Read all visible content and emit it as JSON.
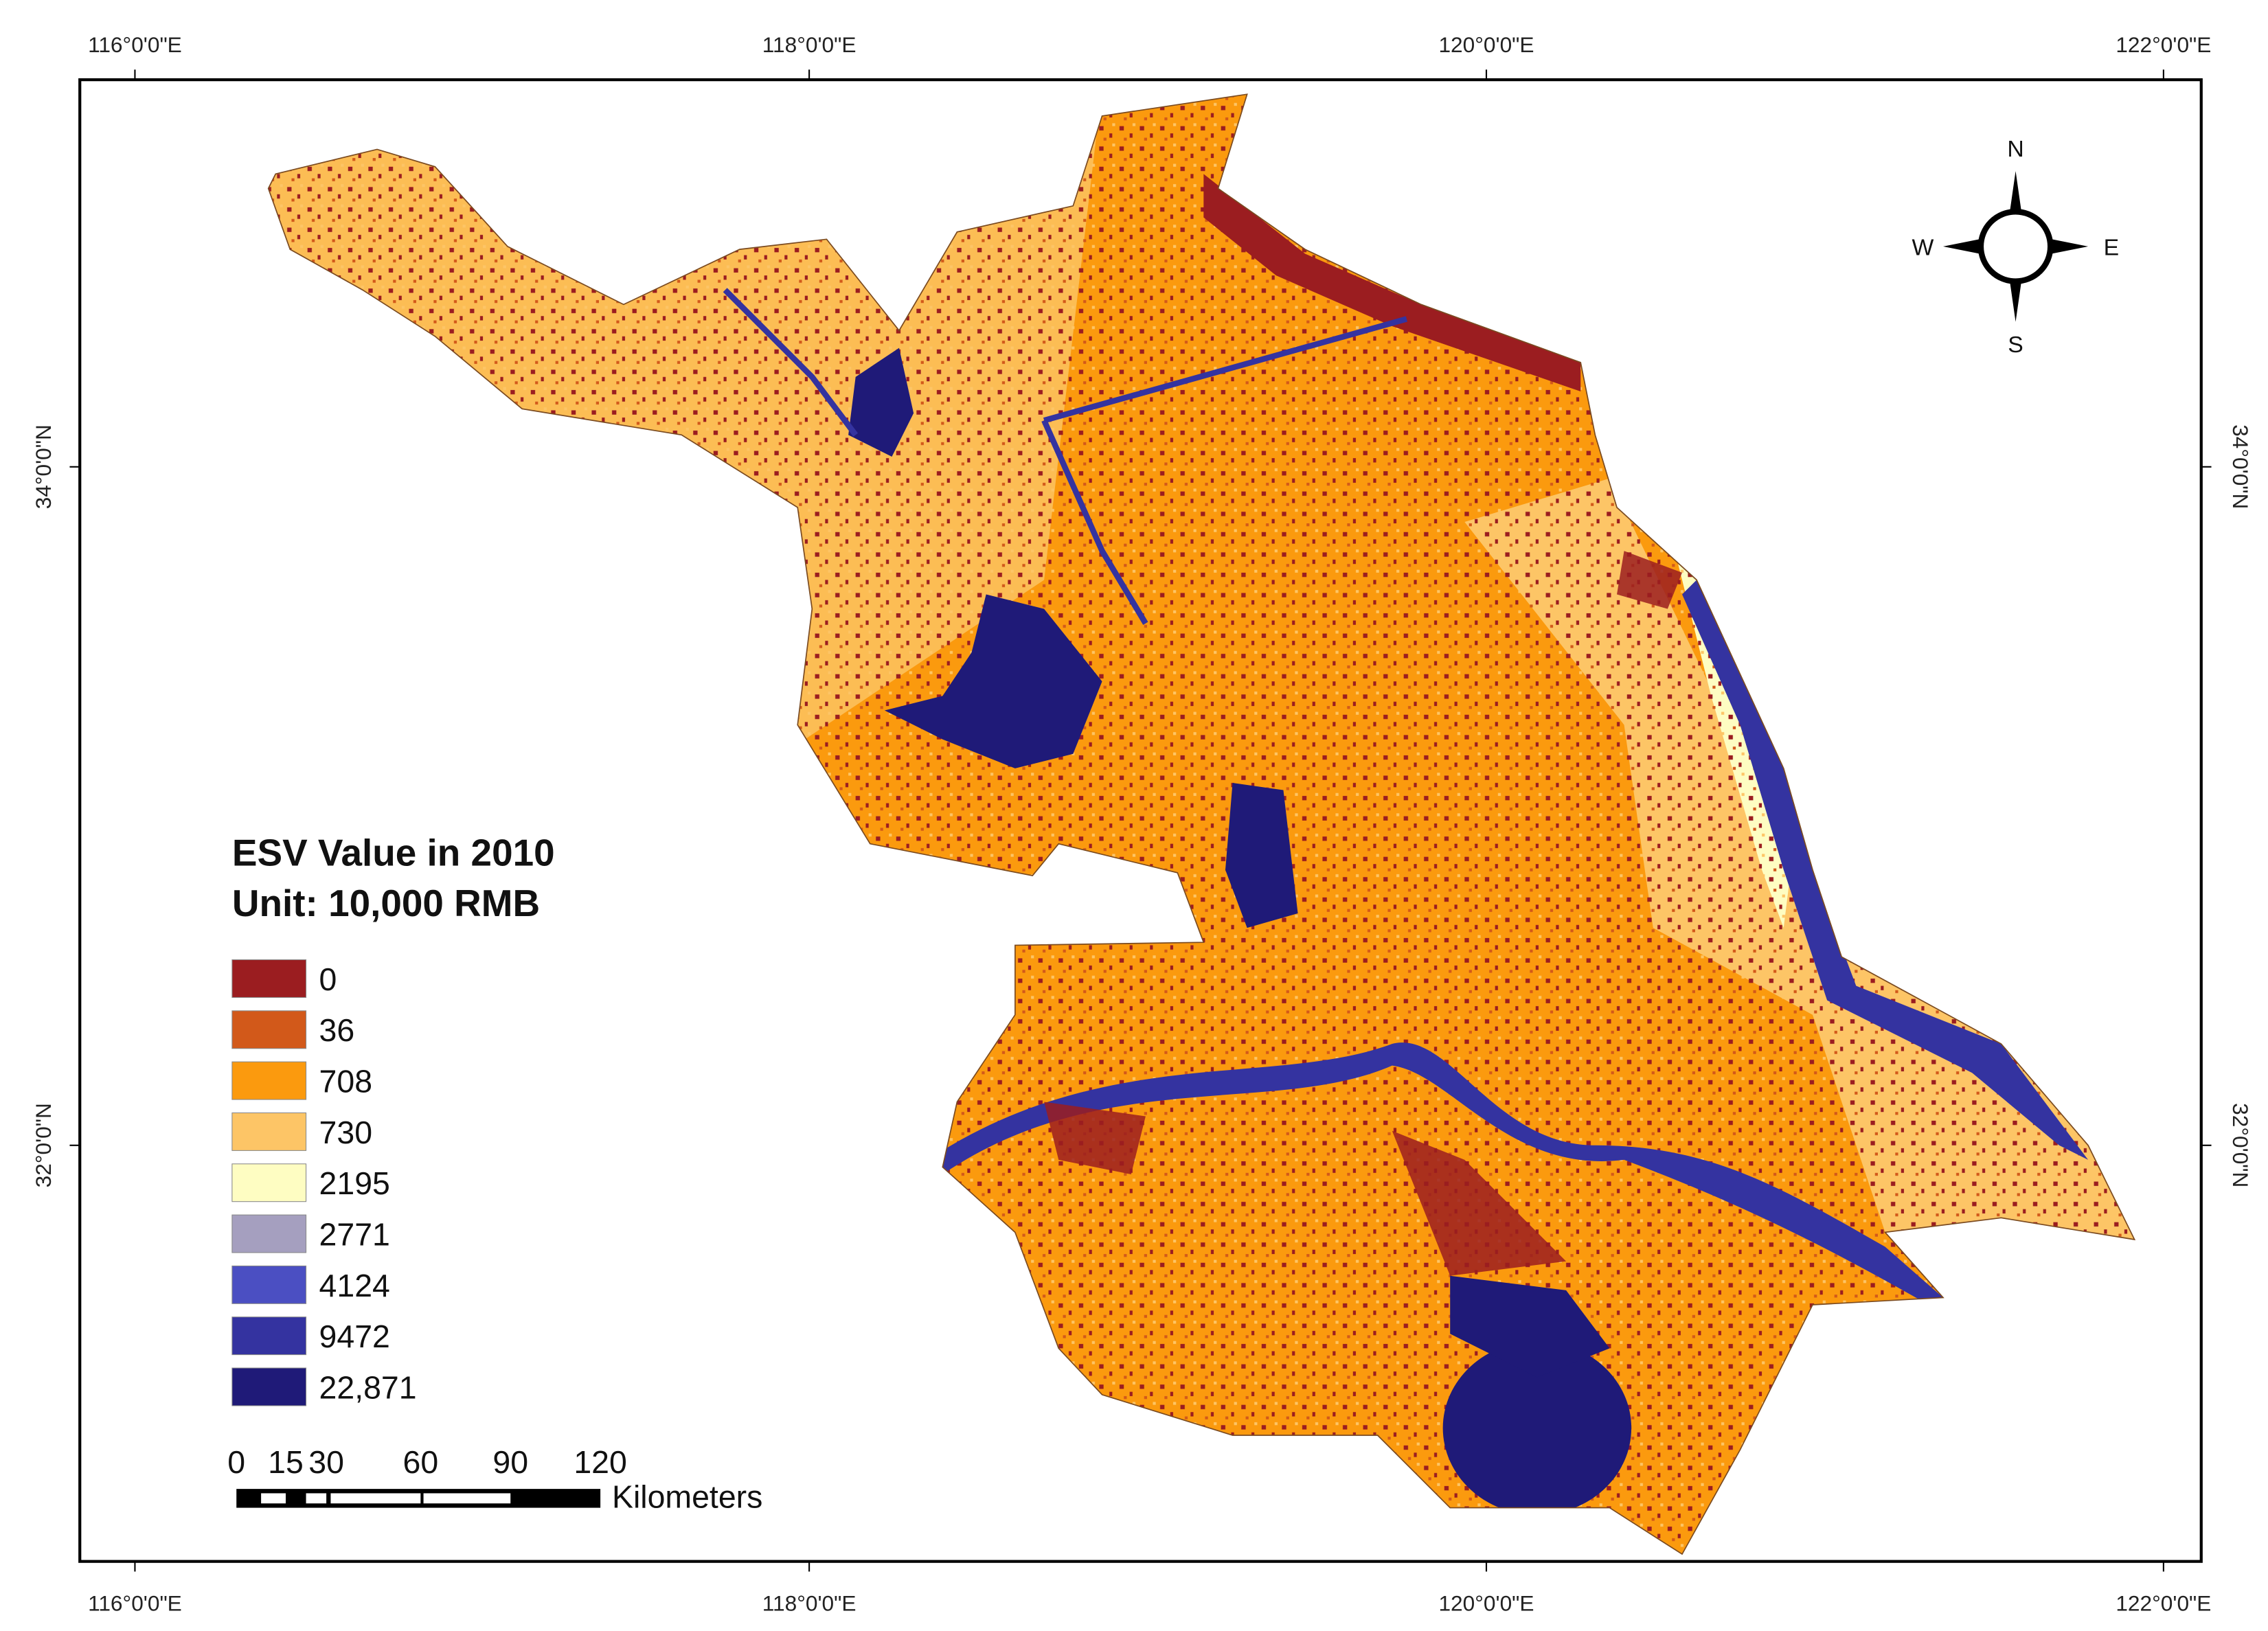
{
  "map": {
    "graticule": {
      "longitudes": [
        "116°0'0\"E",
        "118°0'0\"E",
        "120°0'0\"E",
        "122°0'0\"E"
      ],
      "latitudes": [
        "34°0'0\"N",
        "32°0'0\"N"
      ]
    },
    "legend": {
      "title": "ESV Value in 2010",
      "unit": "Unit: 10,000  RMB",
      "items": [
        {
          "label": "0",
          "color": "#9b1d20"
        },
        {
          "label": "36",
          "color": "#d2591a"
        },
        {
          "label": "708",
          "color": "#fb9a0e"
        },
        {
          "label": "730",
          "color": "#fdc566"
        },
        {
          "label": "2195",
          "color": "#fefdc2"
        },
        {
          "label": "2771",
          "color": "#a59fbf"
        },
        {
          "label": "4124",
          "color": "#4b4fc2"
        },
        {
          "label": "9472",
          "color": "#3433a0"
        },
        {
          "label": "22,871",
          "color": "#1f1a78"
        }
      ]
    },
    "scale_bar": {
      "labels": [
        "0",
        "15",
        "30",
        "60",
        "90",
        "120"
      ],
      "unit": "Kilometers"
    },
    "compass": {
      "north": "N",
      "south": "S",
      "east": "E",
      "west": "W"
    }
  }
}
